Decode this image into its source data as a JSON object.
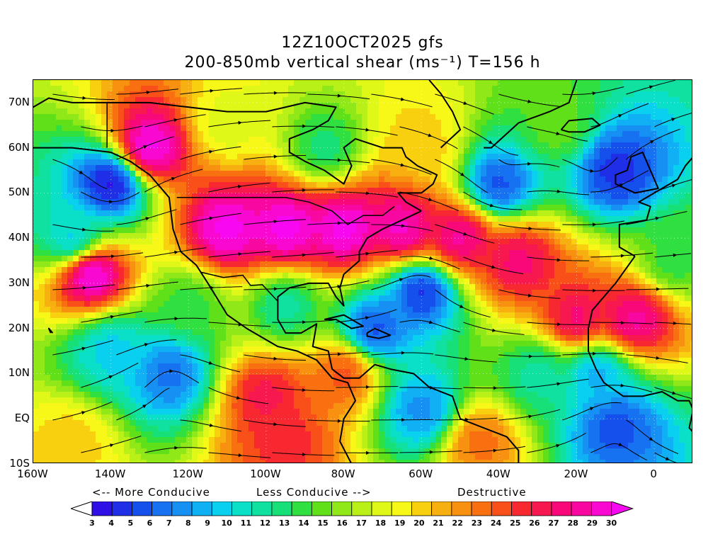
{
  "header": {
    "title_line1": "12Z10OCT2025 gfs",
    "title_line2": "200-850mb vertical shear (ms⁻¹) T=156 h"
  },
  "map": {
    "region": "North Atlantic / Eastern Pacific",
    "lat_range": [
      -10,
      75
    ],
    "lon_range": [
      -160,
      10
    ],
    "lat_labels": [
      {
        "text": "70N",
        "lat": 70
      },
      {
        "text": "60N",
        "lat": 60
      },
      {
        "text": "50N",
        "lat": 50
      },
      {
        "text": "40N",
        "lat": 40
      },
      {
        "text": "30N",
        "lat": 30
      },
      {
        "text": "20N",
        "lat": 20
      },
      {
        "text": "10N",
        "lat": 10
      },
      {
        "text": "EQ",
        "lat": 0
      },
      {
        "text": "10S",
        "lat": -10
      }
    ],
    "lon_labels": [
      {
        "text": "160W",
        "lon": -160
      },
      {
        "text": "140W",
        "lon": -140
      },
      {
        "text": "120W",
        "lon": -120
      },
      {
        "text": "100W",
        "lon": -100
      },
      {
        "text": "80W",
        "lon": -80
      },
      {
        "text": "60W",
        "lon": -60
      },
      {
        "text": "40W",
        "lon": -40
      },
      {
        "text": "20W",
        "lon": -20
      },
      {
        "text": "0",
        "lon": 0
      }
    ],
    "shear_field": [
      {
        "lon": -140,
        "lat": 52,
        "value": 4
      },
      {
        "lon": -150,
        "lat": 40,
        "value": 10
      },
      {
        "lon": -130,
        "lat": 60,
        "value": 30
      },
      {
        "lon": -145,
        "lat": 32,
        "value": 30
      },
      {
        "lon": -110,
        "lat": 42,
        "value": 30
      },
      {
        "lon": -95,
        "lat": 42,
        "value": 30
      },
      {
        "lon": -80,
        "lat": 42,
        "value": 30
      },
      {
        "lon": -65,
        "lat": 42,
        "value": 29
      },
      {
        "lon": -50,
        "lat": 40,
        "value": 28
      },
      {
        "lon": -35,
        "lat": 35,
        "value": 27
      },
      {
        "lon": -60,
        "lat": 28,
        "value": 5
      },
      {
        "lon": -72,
        "lat": 20,
        "value": 6
      },
      {
        "lon": -40,
        "lat": 52,
        "value": 6
      },
      {
        "lon": -10,
        "lat": 55,
        "value": 5
      },
      {
        "lon": -20,
        "lat": 22,
        "value": 27
      },
      {
        "lon": -5,
        "lat": 22,
        "value": 28
      },
      {
        "lon": -125,
        "lat": 10,
        "value": 7
      },
      {
        "lon": -140,
        "lat": 15,
        "value": 10
      },
      {
        "lon": -100,
        "lat": 5,
        "value": 26
      },
      {
        "lon": -95,
        "lat": -5,
        "value": 25
      },
      {
        "lon": -60,
        "lat": 2,
        "value": 8
      },
      {
        "lon": -45,
        "lat": -5,
        "value": 23
      },
      {
        "lon": -10,
        "lat": -2,
        "value": 6
      },
      {
        "lon": -15,
        "lat": 10,
        "value": 9
      },
      {
        "lon": -150,
        "lat": -5,
        "value": 20
      },
      {
        "lon": -120,
        "lat": 25,
        "value": 14
      },
      {
        "lon": -95,
        "lat": 25,
        "value": 12
      },
      {
        "lon": -85,
        "lat": 60,
        "value": 13
      },
      {
        "lon": -110,
        "lat": 65,
        "value": 18
      },
      {
        "lon": -60,
        "lat": 60,
        "value": 20
      },
      {
        "lon": -25,
        "lat": 65,
        "value": 15
      },
      {
        "lon": 5,
        "lat": 35,
        "value": 14
      },
      {
        "lon": -30,
        "lat": 10,
        "value": 12
      },
      {
        "lon": -80,
        "lat": 10,
        "value": 24
      }
    ]
  },
  "key": {
    "more_conducive": "<-- More Conducive",
    "less_conducive": "Less Conducive -->",
    "destructive": "Destructive"
  },
  "colorbar": {
    "ticks": [
      "3",
      "4",
      "5",
      "6",
      "7",
      "8",
      "9",
      "10",
      "11",
      "12",
      "13",
      "14",
      "15",
      "16",
      "17",
      "18",
      "19",
      "20",
      "21",
      "22",
      "23",
      "24",
      "25",
      "26",
      "27",
      "28",
      "29",
      "30"
    ],
    "colors": [
      "#ffffff",
      "#2e0fe6",
      "#1f2fe8",
      "#1650ec",
      "#1672f0",
      "#1690f2",
      "#10b0f4",
      "#0ad0f0",
      "#0ae0c8",
      "#10e0a0",
      "#18e078",
      "#30e040",
      "#60e018",
      "#90e818",
      "#b8f018",
      "#e0f818",
      "#f8f818",
      "#f8d010",
      "#f8b010",
      "#f89010",
      "#f87010",
      "#f85018",
      "#f82830",
      "#f81850",
      "#f80878",
      "#f808a0",
      "#f808d0",
      "#f808f0"
    ],
    "min": 3,
    "max": 30
  }
}
